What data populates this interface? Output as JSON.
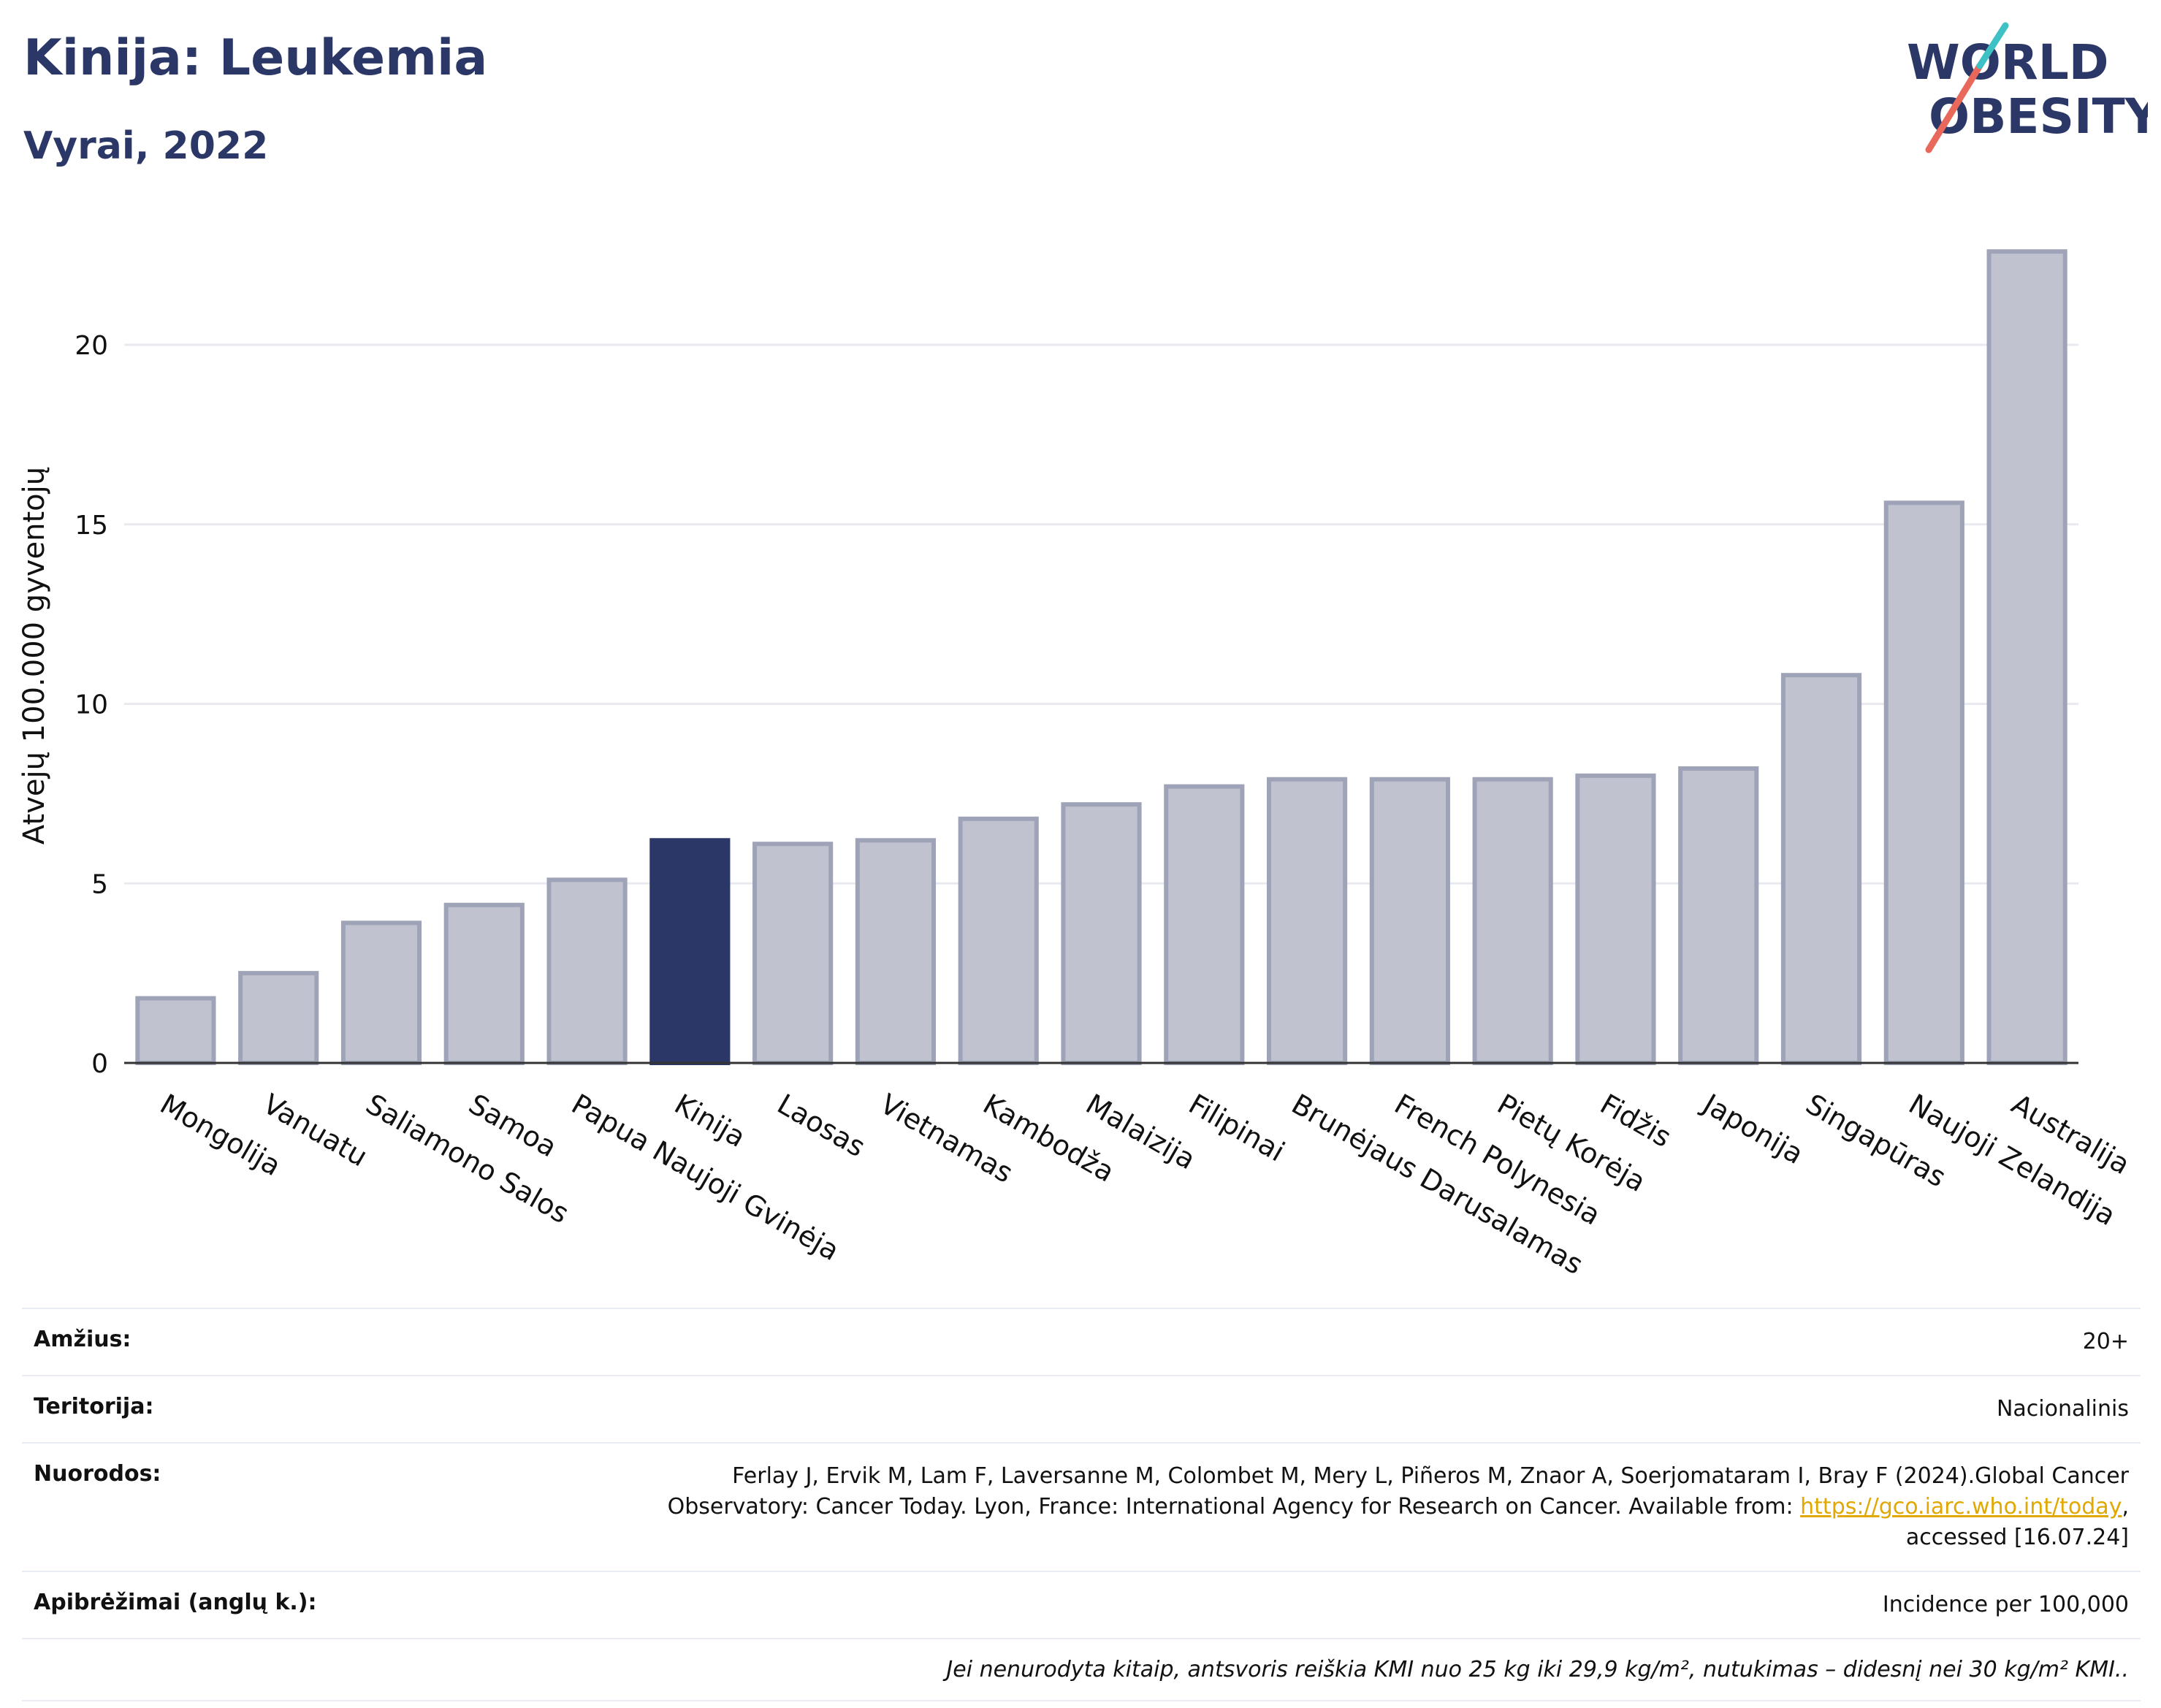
{
  "header": {
    "title": "Kinija: Leukemia",
    "subtitle": "Vyrai, 2022"
  },
  "logo": {
    "line1": "WORLD",
    "line2": "OBESITY",
    "brand_color": "#2b3766",
    "slash_colors": [
      "#e8685b",
      "#3ec1c4"
    ]
  },
  "chart_data": {
    "type": "bar",
    "title": "Kinija: Leukemia",
    "subtitle": "Vyrai, 2022",
    "xlabel": "",
    "ylabel": "Atvejų 100.000 gyventojų",
    "ylim": [
      0,
      23.5
    ],
    "yticks": [
      0,
      5,
      10,
      15,
      20
    ],
    "grid": true,
    "legend": "none",
    "categories": [
      "Mongolija",
      "Vanuatu",
      "Saliamono Salos",
      "Samoa",
      "Papua Naujoji Gvinėja",
      "Kinija",
      "Laosas",
      "Vietnamas",
      "Kambodža",
      "Malaizija",
      "Filipinai",
      "Brunėjaus Darusalamas",
      "French Polynesia",
      "Pietų Korėja",
      "Fidžis",
      "Japonija",
      "Singapūras",
      "Naujoji Zelandija",
      "Australija"
    ],
    "values": [
      1.8,
      2.5,
      3.9,
      4.4,
      5.1,
      6.2,
      6.1,
      6.2,
      6.8,
      7.2,
      7.7,
      7.9,
      7.9,
      7.9,
      8.0,
      8.2,
      10.8,
      15.6,
      22.6
    ],
    "highlight": "Kinija",
    "colors": {
      "bar": "#c0c3cf",
      "bar_edge": "#9ea3b8",
      "highlight": "#2b3766",
      "grid": "#e8eaf0",
      "axis": "#333333"
    }
  },
  "info": {
    "rows": [
      {
        "label": "Amžius:",
        "value": "20+"
      },
      {
        "label": "Teritorija:",
        "value": "Nacionalinis"
      },
      {
        "label": "Nuorodos:",
        "value_pre": "Ferlay J, Ervik M, Lam F, Laversanne M, Colombet M, Mery L, Piñeros M, Znaor A, Soerjomataram I, Bray F (2024).Global Cancer Observatory: Cancer Today. Lyon, France: International Agency for Research on Cancer. Available from: ",
        "link": "https://gco.iarc.who.int/today",
        "value_post": ", accessed [16.07.24]"
      },
      {
        "label": "Apibrėžimai (anglų k.):",
        "value": "Incidence per 100,000"
      }
    ],
    "note": "Jei nenurodyta kitaip, antsvoris reiškia KMI nuo 25 kg iki 29,9 kg/m², nutukimas – didesnį nei 30 kg/m² KMI.."
  }
}
